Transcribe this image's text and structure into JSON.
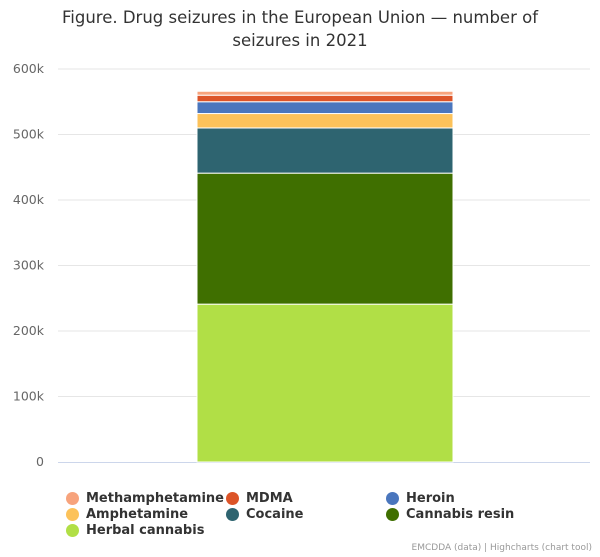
{
  "chart_data": {
    "type": "bar",
    "stacked": true,
    "title": "Figure. Drug seizures in the European Union — number of seizures in 2021",
    "categories": [
      "2021"
    ],
    "ylim": [
      0,
      600000
    ],
    "yticks": [
      0,
      100000,
      200000,
      300000,
      400000,
      500000,
      600000
    ],
    "ytick_labels": [
      "0",
      "100k",
      "200k",
      "300k",
      "400k",
      "500k",
      "600k"
    ],
    "grid": true,
    "legend_position": "bottom",
    "series": [
      {
        "name": "Herbal cannabis",
        "values": [
          241000
        ],
        "color": "#b1df46"
      },
      {
        "name": "Cannabis resin",
        "values": [
          200000
        ],
        "color": "#3f6f00"
      },
      {
        "name": "Cocaine",
        "values": [
          69000
        ],
        "color": "#2e6470"
      },
      {
        "name": "Amphetamine",
        "values": [
          22000
        ],
        "color": "#fcc25a"
      },
      {
        "name": "Heroin",
        "values": [
          18000
        ],
        "color": "#4a76bd"
      },
      {
        "name": "MDMA",
        "values": [
          10000
        ],
        "color": "#dc5428"
      },
      {
        "name": "Methamphetamine",
        "values": [
          6000
        ],
        "color": "#f7a37c"
      }
    ],
    "legend_order": [
      "Methamphetamine",
      "MDMA",
      "Heroin",
      "Amphetamine",
      "Cocaine",
      "Cannabis resin",
      "Herbal cannabis"
    ]
  },
  "credits": "EMCDDA (data) | Highcharts (chart tool)"
}
